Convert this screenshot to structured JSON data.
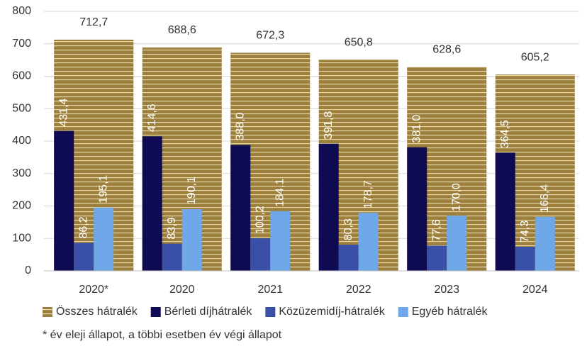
{
  "chart_data": {
    "type": "bar",
    "categories": [
      "2020*",
      "2020",
      "2021",
      "2022",
      "2023",
      "2024"
    ],
    "series": [
      {
        "name": "Összes hátralék",
        "color": "#9c7f3c",
        "hatch": true,
        "values": [
          712.7,
          688.6,
          672.3,
          650.8,
          628.6,
          605.2
        ],
        "value_labels": [
          "712,7",
          "688,6",
          "672,3",
          "650,8",
          "628,6",
          "605,2"
        ]
      },
      {
        "name": "Bérleti díjhátralék",
        "color": "#0e0b52",
        "values": [
          431.4,
          414.6,
          388.0,
          391.8,
          381.0,
          364.5
        ],
        "value_labels": [
          "431,4",
          "414,6",
          "388,0",
          "391,8",
          "381,0",
          "364,5"
        ]
      },
      {
        "name": "Közüzemidíj-hátralék",
        "color": "#3a4fa6",
        "values": [
          86.2,
          83.9,
          100.2,
          80.3,
          77.6,
          74.3
        ],
        "value_labels": [
          "86,2",
          "83,9",
          "100,2",
          "80,3",
          "77,6",
          "74,3"
        ]
      },
      {
        "name": "Egyéb hátralék",
        "color": "#6fa8e8",
        "values": [
          195.1,
          190.1,
          184.1,
          178.7,
          170.0,
          166.4
        ],
        "value_labels": [
          "195,1",
          "190,1",
          "184,1",
          "178,7",
          "170,0",
          "166,4"
        ]
      }
    ],
    "ylim": [
      0,
      800
    ],
    "yticks": [
      0,
      100,
      200,
      300,
      400,
      500,
      600,
      700,
      800
    ],
    "grid": true,
    "legend": "bottom",
    "note": "* év eleji állapot, a többi esetben év végi állapot"
  }
}
